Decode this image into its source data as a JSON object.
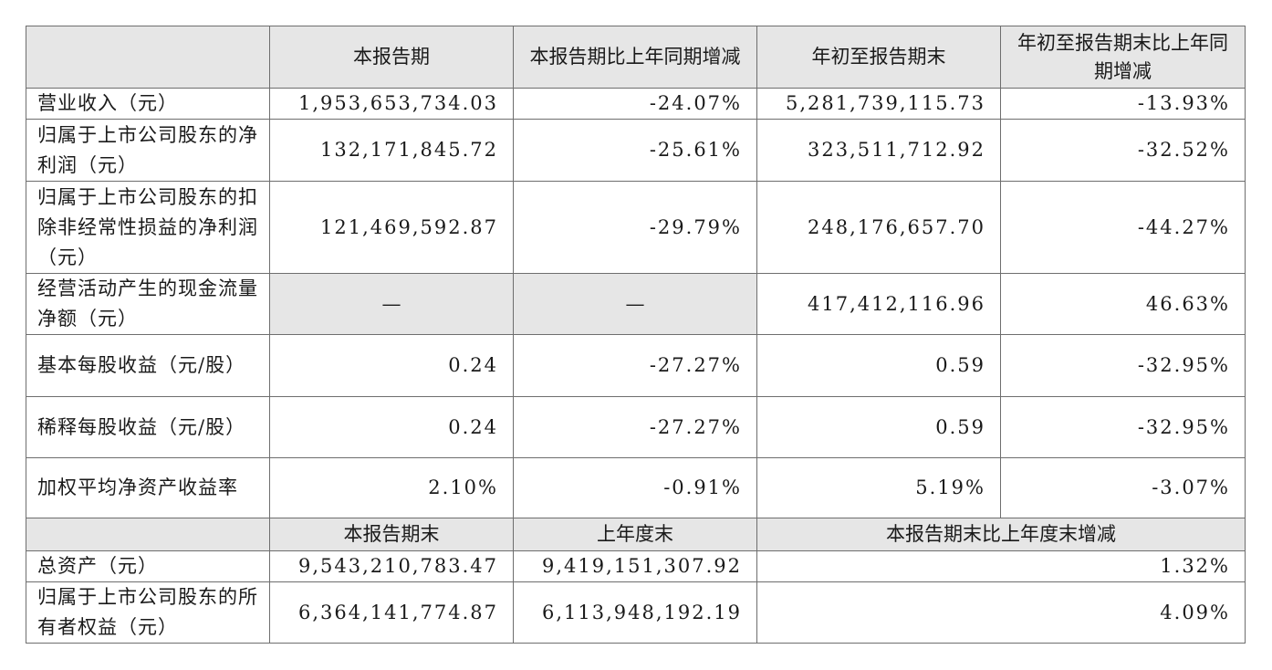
{
  "header": {
    "blank": "",
    "col1": "本报告期",
    "col2": "本报告期比上年同期增减",
    "col3": "年初至报告期末",
    "col4": "年初至报告期末比上年同期增减"
  },
  "rows": [
    {
      "label": "营业收入（元）",
      "current": "1,953,653,734.03",
      "current_change": "-24.07%",
      "ytd": "5,281,739,115.73",
      "ytd_change": "-13.93%"
    },
    {
      "label": "归属于上市公司股东的净利润（元）",
      "current": "132,171,845.72",
      "current_change": "-25.61%",
      "ytd": "323,511,712.92",
      "ytd_change": "-32.52%"
    },
    {
      "label": "归属于上市公司股东的扣除非经常性损益的净利润（元）",
      "current": "121,469,592.87",
      "current_change": "-29.79%",
      "ytd": "248,176,657.70",
      "ytd_change": "-44.27%"
    },
    {
      "label": "经营活动产生的现金流量净额（元）",
      "current": "—",
      "current_change": "—",
      "ytd": "417,412,116.96",
      "ytd_change": "46.63%"
    },
    {
      "label": "基本每股收益（元/股）",
      "current": "0.24",
      "current_change": "-27.27%",
      "ytd": "0.59",
      "ytd_change": "-32.95%"
    },
    {
      "label": "稀释每股收益（元/股）",
      "current": "0.24",
      "current_change": "-27.27%",
      "ytd": "0.59",
      "ytd_change": "-32.95%"
    },
    {
      "label": "加权平均净资产收益率",
      "current": "2.10%",
      "current_change": "-0.91%",
      "ytd": "5.19%",
      "ytd_change": "-3.07%"
    }
  ],
  "header2": {
    "col1": "本报告期末",
    "col2": "上年度末",
    "col3": "本报告期末比上年度末增减"
  },
  "rows2": [
    {
      "label": "总资产（元）",
      "period_end": "9,543,210,783.47",
      "prior_year_end": "9,419,151,307.92",
      "change": "1.32%"
    },
    {
      "label": "归属于上市公司股东的所有者权益（元）",
      "period_end": "6,364,141,774.87",
      "prior_year_end": "6,113,948,192.19",
      "change": "4.09%"
    }
  ]
}
